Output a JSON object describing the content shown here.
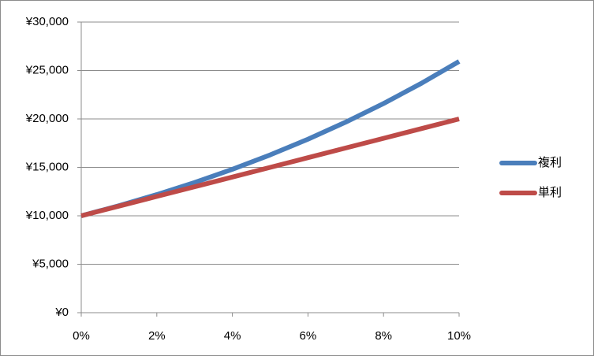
{
  "chart_data": {
    "type": "line",
    "x": [
      0,
      1,
      2,
      3,
      4,
      5,
      6,
      7,
      8,
      9,
      10
    ],
    "series": [
      {
        "name": "複利",
        "color": "#4a7ebb",
        "values": [
          10000,
          11046,
          12190,
          13439,
          14802,
          16289,
          17908,
          19672,
          21589,
          23674,
          25937
        ]
      },
      {
        "name": "単利",
        "color": "#be4b48",
        "values": [
          10000,
          11000,
          12000,
          13000,
          14000,
          15000,
          16000,
          17000,
          18000,
          19000,
          20000
        ]
      }
    ],
    "xlim": [
      0,
      10
    ],
    "xticks": [
      {
        "value": 0,
        "label": "0%"
      },
      {
        "value": 2,
        "label": "2%"
      },
      {
        "value": 4,
        "label": "4%"
      },
      {
        "value": 6,
        "label": "6%"
      },
      {
        "value": 8,
        "label": "8%"
      },
      {
        "value": 10,
        "label": "10%"
      }
    ],
    "ylim": [
      0,
      30000
    ],
    "yticks": [
      {
        "value": 0,
        "label": "¥0"
      },
      {
        "value": 5000,
        "label": "¥5,000"
      },
      {
        "value": 10000,
        "label": "¥10,000"
      },
      {
        "value": 15000,
        "label": "¥15,000"
      },
      {
        "value": 20000,
        "label": "¥20,000"
      },
      {
        "value": 25000,
        "label": "¥25,000"
      },
      {
        "value": 30000,
        "label": "¥30,000"
      }
    ],
    "grid": true,
    "legend": "right"
  }
}
